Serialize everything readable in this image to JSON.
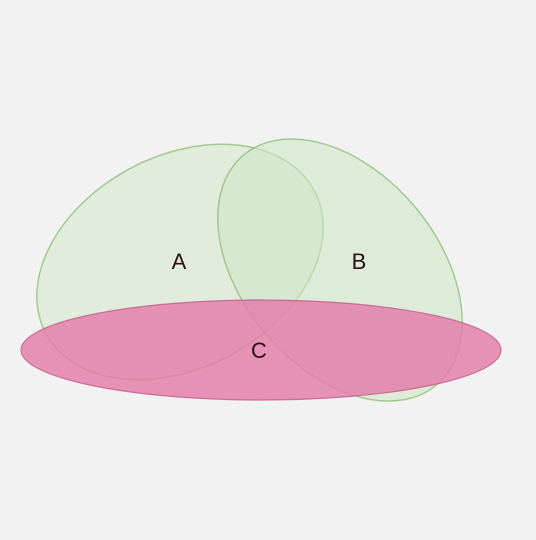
{
  "diagram": {
    "type": "venn",
    "sets": [
      {
        "id": "A",
        "label": "A",
        "fill": "#d4e8cc",
        "stroke": "#8fbf7a"
      },
      {
        "id": "B",
        "label": "B",
        "fill": "#cfe6c5",
        "stroke": "#8fbf7a"
      },
      {
        "id": "C",
        "label": "C",
        "fill": "#e37ba8",
        "stroke": "#c25a88"
      }
    ],
    "background": "#f2f2f2"
  }
}
